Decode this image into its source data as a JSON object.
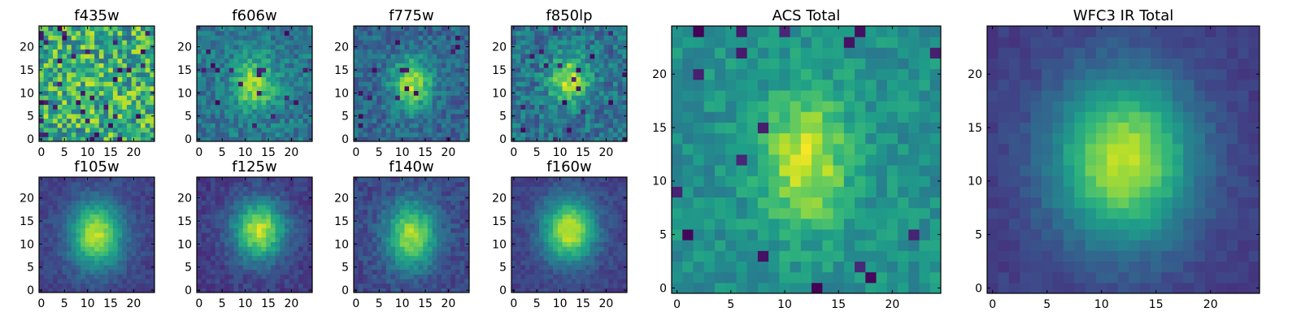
{
  "figure": {
    "colormap": "viridis",
    "colormap_stops": [
      "#440154",
      "#482878",
      "#3e4989",
      "#31688e",
      "#26828e",
      "#1f9e89",
      "#35b779",
      "#6ece58",
      "#b5de2b",
      "#fde725"
    ]
  },
  "chart_data": [
    {
      "type": "heatmap",
      "title": "f435w",
      "grid_size": 25,
      "xlim": [
        -0.5,
        24.5
      ],
      "ylim": [
        -0.5,
        24.5
      ],
      "xticks": [
        0,
        5,
        10,
        15,
        20
      ],
      "yticks": [
        0,
        5,
        10,
        15,
        20
      ],
      "xticklabels": [
        "0",
        "5",
        "10",
        "15",
        "20"
      ],
      "yticklabels": [
        "0",
        "5",
        "10",
        "15",
        "20"
      ],
      "model": {
        "amplitude": 0.05,
        "sigma_x": 3.0,
        "sigma_y": 3.5,
        "x0": 12,
        "y0": 12,
        "noise": 0.3,
        "base": 0.62,
        "seed": 11,
        "dark_pixel_rate": 0.05
      },
      "grid": false,
      "colorbar": false
    },
    {
      "type": "heatmap",
      "title": "f606w",
      "grid_size": 25,
      "xlim": [
        -0.5,
        24.5
      ],
      "ylim": [
        -0.5,
        24.5
      ],
      "xticks": [
        0,
        5,
        10,
        15,
        20
      ],
      "yticks": [
        0,
        5,
        10,
        15,
        20
      ],
      "xticklabels": [
        "0",
        "5",
        "10",
        "15",
        "20"
      ],
      "yticklabels": [
        "0",
        "5",
        "10",
        "15",
        "20"
      ],
      "model": {
        "amplitude": 0.45,
        "sigma_x": 3.2,
        "sigma_y": 4.0,
        "x0": 12,
        "y0": 12,
        "noise": 0.14,
        "base": 0.4,
        "seed": 23,
        "dark_pixel_rate": 0.02
      },
      "grid": false,
      "colorbar": false
    },
    {
      "type": "heatmap",
      "title": "f775w",
      "grid_size": 25,
      "xlim": [
        -0.5,
        24.5
      ],
      "ylim": [
        -0.5,
        24.5
      ],
      "xticks": [
        0,
        5,
        10,
        15,
        20
      ],
      "yticks": [
        0,
        5,
        10,
        15,
        20
      ],
      "xticklabels": [
        "0",
        "5",
        "10",
        "15",
        "20"
      ],
      "yticklabels": [
        "0",
        "5",
        "10",
        "15",
        "20"
      ],
      "model": {
        "amplitude": 0.55,
        "sigma_x": 3.0,
        "sigma_y": 3.8,
        "x0": 12,
        "y0": 12,
        "noise": 0.13,
        "base": 0.33,
        "seed": 37,
        "dark_pixel_rate": 0.025
      },
      "grid": false,
      "colorbar": false
    },
    {
      "type": "heatmap",
      "title": "f850lp",
      "grid_size": 25,
      "xlim": [
        -0.5,
        24.5
      ],
      "ylim": [
        -0.5,
        24.5
      ],
      "xticks": [
        0,
        5,
        10,
        15,
        20
      ],
      "yticks": [
        0,
        5,
        10,
        15,
        20
      ],
      "xticklabels": [
        "0",
        "5",
        "10",
        "15",
        "20"
      ],
      "yticklabels": [
        "0",
        "5",
        "10",
        "15",
        "20"
      ],
      "model": {
        "amplitude": 0.5,
        "sigma_x": 3.0,
        "sigma_y": 3.5,
        "x0": 12,
        "y0": 13,
        "noise": 0.16,
        "base": 0.38,
        "seed": 41,
        "dark_pixel_rate": 0.03
      },
      "grid": false,
      "colorbar": false
    },
    {
      "type": "heatmap",
      "title": "f105w",
      "grid_size": 25,
      "xlim": [
        -0.5,
        24.5
      ],
      "ylim": [
        -0.5,
        24.5
      ],
      "xticks": [
        0,
        5,
        10,
        15,
        20
      ],
      "yticks": [
        0,
        5,
        10,
        15,
        20
      ],
      "xticklabels": [
        "0",
        "5",
        "10",
        "15",
        "20"
      ],
      "yticklabels": [
        "0",
        "5",
        "10",
        "15",
        "20"
      ],
      "model": {
        "amplitude": 0.7,
        "sigma_x": 4.0,
        "sigma_y": 5.0,
        "x0": 12,
        "y0": 12,
        "noise": 0.06,
        "base": 0.2,
        "seed": 53,
        "dark_pixel_rate": 0.0
      },
      "grid": false,
      "colorbar": false
    },
    {
      "type": "heatmap",
      "title": "f125w",
      "grid_size": 25,
      "xlim": [
        -0.5,
        24.5
      ],
      "ylim": [
        -0.5,
        24.5
      ],
      "xticks": [
        0,
        5,
        10,
        15,
        20
      ],
      "yticks": [
        0,
        5,
        10,
        15,
        20
      ],
      "xticklabels": [
        "0",
        "5",
        "10",
        "15",
        "20"
      ],
      "yticklabels": [
        "0",
        "5",
        "10",
        "15",
        "20"
      ],
      "model": {
        "amplitude": 0.72,
        "sigma_x": 4.0,
        "sigma_y": 4.5,
        "x0": 13,
        "y0": 13,
        "noise": 0.07,
        "base": 0.18,
        "seed": 67,
        "dark_pixel_rate": 0.0
      },
      "grid": false,
      "colorbar": false
    },
    {
      "type": "heatmap",
      "title": "f140w",
      "grid_size": 25,
      "xlim": [
        -0.5,
        24.5
      ],
      "ylim": [
        -0.5,
        24.5
      ],
      "xticks": [
        0,
        5,
        10,
        15,
        20
      ],
      "yticks": [
        0,
        5,
        10,
        15,
        20
      ],
      "xticklabels": [
        "0",
        "5",
        "10",
        "15",
        "20"
      ],
      "yticklabels": [
        "0",
        "5",
        "10",
        "15",
        "20"
      ],
      "model": {
        "amplitude": 0.65,
        "sigma_x": 3.8,
        "sigma_y": 5.0,
        "x0": 12,
        "y0": 12,
        "noise": 0.08,
        "base": 0.22,
        "seed": 79,
        "dark_pixel_rate": 0.0
      },
      "grid": false,
      "colorbar": false
    },
    {
      "type": "heatmap",
      "title": "f160w",
      "grid_size": 25,
      "xlim": [
        -0.5,
        24.5
      ],
      "ylim": [
        -0.5,
        24.5
      ],
      "xticks": [
        0,
        5,
        10,
        15,
        20
      ],
      "yticks": [
        0,
        5,
        10,
        15,
        20
      ],
      "xticklabels": [
        "0",
        "5",
        "10",
        "15",
        "20"
      ],
      "yticklabels": [
        "0",
        "5",
        "10",
        "15",
        "20"
      ],
      "model": {
        "amplitude": 0.72,
        "sigma_x": 4.0,
        "sigma_y": 4.8,
        "x0": 12,
        "y0": 13,
        "noise": 0.06,
        "base": 0.2,
        "seed": 83,
        "dark_pixel_rate": 0.0
      },
      "grid": false,
      "colorbar": false
    },
    {
      "type": "heatmap",
      "title": "ACS Total",
      "grid_size": 25,
      "xlim": [
        -0.5,
        24.5
      ],
      "ylim": [
        -0.5,
        24.5
      ],
      "xticks": [
        0,
        5,
        10,
        15,
        20
      ],
      "yticks": [
        0,
        5,
        10,
        15,
        20
      ],
      "xticklabels": [
        "0",
        "5",
        "10",
        "15",
        "20"
      ],
      "yticklabels": [
        "0",
        "5",
        "10",
        "15",
        "20"
      ],
      "model": {
        "amplitude": 0.42,
        "sigma_x": 2.8,
        "sigma_y": 4.5,
        "x0": 12,
        "y0": 12,
        "noise": 0.1,
        "base": 0.5,
        "seed": 97,
        "dark_pixel_rate": 0.035
      },
      "grid": false,
      "colorbar": false
    },
    {
      "type": "heatmap",
      "title": "WFC3 IR Total",
      "grid_size": 25,
      "xlim": [
        -0.5,
        24.5
      ],
      "ylim": [
        -0.5,
        24.5
      ],
      "xticks": [
        0,
        5,
        10,
        15,
        20
      ],
      "yticks": [
        0,
        5,
        10,
        15,
        20
      ],
      "xticklabels": [
        "0",
        "5",
        "10",
        "15",
        "20"
      ],
      "yticklabels": [
        "0",
        "5",
        "10",
        "15",
        "20"
      ],
      "model": {
        "amplitude": 0.72,
        "sigma_x": 4.5,
        "sigma_y": 5.5,
        "x0": 12,
        "y0": 12,
        "noise": 0.04,
        "base": 0.18,
        "seed": 101,
        "dark_pixel_rate": 0.0
      },
      "grid": false,
      "colorbar": false
    }
  ]
}
